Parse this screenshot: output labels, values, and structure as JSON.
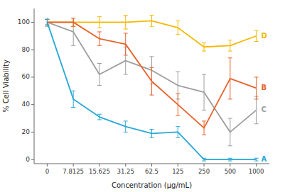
{
  "chart_data": {
    "type": "line",
    "xlabel": "Concentration (μg/mL)",
    "ylabel": "% Cell Viability",
    "categories": [
      "0",
      "7.8125",
      "15.625",
      "31.25",
      "62.5",
      "125",
      "250",
      "500",
      "1000"
    ],
    "series": [
      {
        "name": "D",
        "color": "#F5B800",
        "values": [
          100,
          100,
          100,
          100,
          101,
          96,
          82,
          83,
          90
        ],
        "errors": [
          2,
          3,
          4,
          5,
          4,
          5,
          3,
          4,
          4
        ]
      },
      {
        "name": "C",
        "color": "#9E9E9E",
        "values": [
          100,
          93,
          62,
          72,
          65,
          54,
          49,
          20,
          36
        ],
        "errors": [
          3,
          10,
          8,
          10,
          10,
          10,
          13,
          10,
          10
        ]
      },
      {
        "name": "B",
        "color": "#E8622A",
        "values": [
          100,
          100,
          88,
          84,
          57,
          40,
          23,
          59,
          52
        ],
        "errors": [
          2,
          3,
          5,
          8,
          10,
          8,
          5,
          15,
          8
        ]
      },
      {
        "name": "A",
        "color": "#29A8D8",
        "values": [
          100,
          44,
          31,
          24,
          19,
          20,
          0,
          0,
          0
        ],
        "errors": [
          2,
          6,
          2,
          4,
          3,
          4,
          1,
          1,
          1
        ]
      }
    ],
    "ylim": [
      -3,
      110
    ],
    "yticks": [
      0,
      20,
      40,
      60,
      80,
      100
    ],
    "grid": false
  }
}
